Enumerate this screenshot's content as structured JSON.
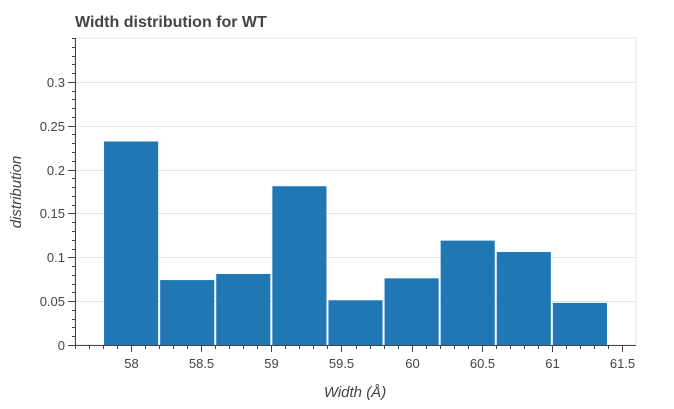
{
  "chart_data": {
    "type": "bar",
    "title": "Width distribution for WT",
    "xlabel": "Width (Å)",
    "ylabel": "distribution",
    "bin_width": 0.4,
    "bins": [
      {
        "x0": 57.8,
        "x1": 58.2,
        "value": 0.232
      },
      {
        "x0": 58.2,
        "x1": 58.6,
        "value": 0.074
      },
      {
        "x0": 58.6,
        "x1": 59.0,
        "value": 0.081
      },
      {
        "x0": 59.0,
        "x1": 59.4,
        "value": 0.181
      },
      {
        "x0": 59.4,
        "x1": 59.8,
        "value": 0.051
      },
      {
        "x0": 59.8,
        "x1": 60.2,
        "value": 0.076
      },
      {
        "x0": 60.2,
        "x1": 60.6,
        "value": 0.119
      },
      {
        "x0": 60.6,
        "x1": 61.0,
        "value": 0.106
      },
      {
        "x0": 61.0,
        "x1": 61.4,
        "value": 0.048
      }
    ],
    "xlim": [
      57.6,
      61.6
    ],
    "ylim": [
      0,
      0.35
    ],
    "x_ticks": [
      {
        "value": 58,
        "label": "58"
      },
      {
        "value": 58.5,
        "label": "58.5"
      },
      {
        "value": 59,
        "label": "59"
      },
      {
        "value": 59.5,
        "label": "59.5"
      },
      {
        "value": 60,
        "label": "60"
      },
      {
        "value": 60.5,
        "label": "60.5"
      },
      {
        "value": 61,
        "label": "61"
      },
      {
        "value": 61.5,
        "label": "61.5"
      }
    ],
    "x_minor_step": 0.1,
    "y_ticks": [
      {
        "value": 0,
        "label": "0"
      },
      {
        "value": 0.05,
        "label": "0.05"
      },
      {
        "value": 0.1,
        "label": "0.1"
      },
      {
        "value": 0.15,
        "label": "0.15"
      },
      {
        "value": 0.2,
        "label": "0.2"
      },
      {
        "value": 0.25,
        "label": "0.25"
      },
      {
        "value": 0.3,
        "label": "0.3"
      }
    ],
    "y_minor_step": 0.01,
    "grid": true,
    "legend": false,
    "colors": {
      "bar": "#1f77b4",
      "grid": "#e5e5e5",
      "axis": "#444444",
      "text": "#444444"
    }
  }
}
